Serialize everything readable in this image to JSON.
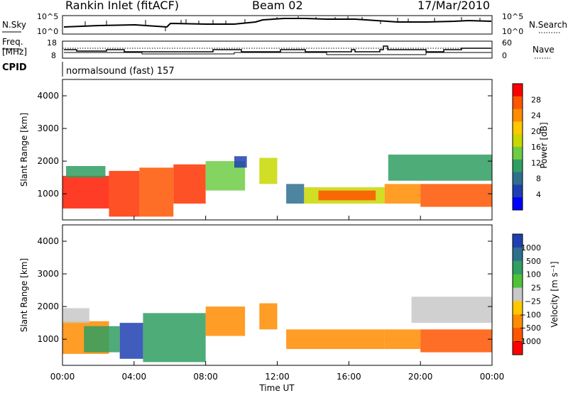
{
  "header": {
    "station": "Rankin Inlet (fitACF)",
    "beam": "Beam 02",
    "date": "17/Mar/2010"
  },
  "top_panels": {
    "nsky_label": "N.Sky",
    "nsky_ticks": [
      "10^5",
      "10^0"
    ],
    "nsearch_label": "N.Search",
    "nsearch_ticks": [
      "10^5",
      "10^0"
    ],
    "freq_label_1": "Freq.",
    "freq_label_2": "[MHz]",
    "freq_ticks": [
      "18",
      "8"
    ],
    "nave_label": "Nave",
    "nave_ticks": [
      "60",
      "0"
    ],
    "cpid_label": "CPID",
    "cpid_value": "normalsound (fast) 157"
  },
  "chart_data": [
    {
      "type": "heatmap",
      "name": "power",
      "ylabel": "Slant Range [km]",
      "yticks": [
        "1000",
        "2000",
        "3000",
        "4000"
      ],
      "ylim": [
        200,
        4500
      ],
      "colorbar": {
        "label": "Power [dB]",
        "ticks": [
          "28",
          "24",
          "20",
          "16",
          "12",
          "8",
          "4"
        ],
        "colors": [
          "#ff0000",
          "#ff5500",
          "#ff8c00",
          "#ffc800",
          "#c8d800",
          "#6fcc45",
          "#2f9e62",
          "#2e6f8e",
          "#1f3fb0",
          "#0000ff"
        ]
      },
      "bands": [
        {
          "t0": 0.0,
          "t1": 2.6,
          "r0": 550,
          "r1": 1550,
          "color": "#ff1a00"
        },
        {
          "t0": 0.2,
          "t1": 2.4,
          "r0": 1500,
          "r1": 1850,
          "color": "#2f9e62"
        },
        {
          "t0": 2.6,
          "t1": 4.3,
          "r0": 300,
          "r1": 1700,
          "color": "#ff3300"
        },
        {
          "t0": 4.3,
          "t1": 6.2,
          "r0": 300,
          "r1": 1800,
          "color": "#ff5500"
        },
        {
          "t0": 6.2,
          "t1": 8.0,
          "r0": 700,
          "r1": 1900,
          "color": "#ff3300"
        },
        {
          "t0": 8.0,
          "t1": 10.2,
          "r0": 1100,
          "r1": 2000,
          "color": "#6fcc45"
        },
        {
          "t0": 9.6,
          "t1": 10.3,
          "r0": 1800,
          "r1": 2150,
          "color": "#1f3fb0"
        },
        {
          "t0": 11.0,
          "t1": 12.0,
          "r0": 1300,
          "r1": 2100,
          "color": "#c8d800"
        },
        {
          "t0": 12.5,
          "t1": 13.5,
          "r0": 700,
          "r1": 1300,
          "color": "#2e6f8e"
        },
        {
          "t0": 13.5,
          "t1": 18.0,
          "r0": 700,
          "r1": 1200,
          "color": "#c8d800"
        },
        {
          "t0": 14.3,
          "t1": 17.5,
          "r0": 800,
          "r1": 1100,
          "color": "#ff5500"
        },
        {
          "t0": 18.0,
          "t1": 20.0,
          "r0": 700,
          "r1": 1300,
          "color": "#ff8c00"
        },
        {
          "t0": 18.2,
          "t1": 24.0,
          "r0": 1400,
          "r1": 2200,
          "color": "#2f9e62"
        },
        {
          "t0": 20.0,
          "t1": 24.0,
          "r0": 600,
          "r1": 1300,
          "color": "#ff5500"
        }
      ]
    },
    {
      "type": "heatmap",
      "name": "velocity",
      "ylabel": "Slant Range [km]",
      "yticks": [
        "1000",
        "2000",
        "3000",
        "4000"
      ],
      "ylim": [
        200,
        4500
      ],
      "colorbar": {
        "label": "Velocity [m s⁻¹]",
        "ticks": [
          "1000",
          "500",
          "100",
          "25",
          "−25",
          "−100",
          "−500",
          "−1000"
        ],
        "colors": [
          "#1f3fb0",
          "#2e6f8e",
          "#2f9e62",
          "#4fc13a",
          "#c8c8c8",
          "#ffc800",
          "#ff8c00",
          "#ff5500",
          "#ff0000"
        ]
      },
      "bands": [
        {
          "t0": 0.0,
          "t1": 2.6,
          "r0": 550,
          "r1": 1550,
          "color": "#ff8c00"
        },
        {
          "t0": 0.0,
          "t1": 1.5,
          "r0": 1500,
          "r1": 1950,
          "color": "#c8c8c8"
        },
        {
          "t0": 1.2,
          "t1": 3.2,
          "r0": 600,
          "r1": 1400,
          "color": "#2f9e62"
        },
        {
          "t0": 3.2,
          "t1": 4.5,
          "r0": 400,
          "r1": 1500,
          "color": "#1f3fb0"
        },
        {
          "t0": 4.5,
          "t1": 8.0,
          "r0": 300,
          "r1": 1800,
          "color": "#2f9e62"
        },
        {
          "t0": 8.0,
          "t1": 10.2,
          "r0": 1100,
          "r1": 2000,
          "color": "#ff8c00"
        },
        {
          "t0": 11.0,
          "t1": 12.0,
          "r0": 1300,
          "r1": 2100,
          "color": "#ff8c00"
        },
        {
          "t0": 12.5,
          "t1": 18.0,
          "r0": 700,
          "r1": 1300,
          "color": "#ff8c00"
        },
        {
          "t0": 18.0,
          "t1": 20.0,
          "r0": 700,
          "r1": 1300,
          "color": "#ff8c00"
        },
        {
          "t0": 19.5,
          "t1": 24.0,
          "r0": 1500,
          "r1": 2300,
          "color": "#c8c8c8"
        },
        {
          "t0": 20.0,
          "t1": 24.0,
          "r0": 600,
          "r1": 1300,
          "color": "#ff5500"
        }
      ]
    }
  ],
  "x_axis": {
    "ticks": [
      "00:00",
      "04:00",
      "08:00",
      "12:00",
      "16:00",
      "20:00",
      "00:00"
    ],
    "label": "Time UT"
  }
}
